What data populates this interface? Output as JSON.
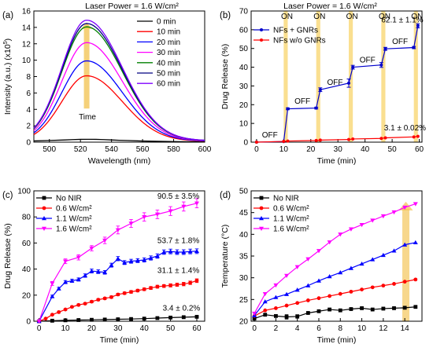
{
  "chart_data": [
    {
      "panel": "(a)",
      "type": "line",
      "title": "Laser Power = 1.6 W/cm²",
      "xlabel": "Wavelength (nm)",
      "ylabel_main": "Intensity (a.u.) (x10",
      "ylabel_sup": "5",
      "ylabel_end": ")",
      "xlim": [
        490,
        600
      ],
      "ylim": [
        0,
        16
      ],
      "xticks": [
        500,
        520,
        540,
        560,
        580,
        600
      ],
      "yticks": [
        0,
        2,
        4,
        6,
        8,
        10,
        12,
        14,
        16
      ],
      "legend_position": "top-right",
      "annotation": "Time",
      "arrow": {
        "x": 524,
        "y_from": 4.1,
        "y_to": 14.6,
        "color": "#f2c24e"
      },
      "series": [
        {
          "name": "0 min",
          "color": "#000000",
          "peak": 0.35,
          "x": [
            490,
            500,
            510,
            515,
            520,
            525,
            530,
            535,
            540,
            545,
            550,
            560,
            570,
            580,
            590,
            600
          ],
          "y": [
            0.15,
            0.2,
            0.27,
            0.31,
            0.34,
            0.35,
            0.34,
            0.31,
            0.27,
            0.23,
            0.2,
            0.14,
            0.1,
            0.07,
            0.05,
            0.04
          ]
        },
        {
          "name": "10 min",
          "color": "#ff0000",
          "peak": 8.0
        },
        {
          "name": "20 min",
          "color": "#0000ff",
          "peak": 9.8
        },
        {
          "name": "30 min",
          "color": "#ff00ff",
          "peak": 12.0
        },
        {
          "name": "40 min",
          "color": "#008000",
          "peak": 13.9
        },
        {
          "name": "50 min",
          "color": "#000080",
          "peak": 14.3
        },
        {
          "name": "60 min",
          "color": "#7f00ff",
          "peak": 14.7
        }
      ]
    },
    {
      "panel": "(b)",
      "type": "line",
      "title": "Laser Power = 1.6 W/cm²",
      "xlabel": "Time (min)",
      "ylabel": "Drug Release (%)",
      "xlim": [
        -2,
        61
      ],
      "ylim": [
        0,
        70
      ],
      "xticks": [
        0,
        10,
        20,
        30,
        40,
        50,
        60
      ],
      "yticks": [
        0,
        10,
        20,
        30,
        40,
        50,
        60,
        70
      ],
      "legend_position": "top-left",
      "on_bands": [
        [
          10,
          11.5
        ],
        [
          22,
          23.5
        ],
        [
          34,
          35.5
        ],
        [
          46,
          47.5
        ],
        [
          58,
          59.5
        ]
      ],
      "on_labels": [
        {
          "text": "ON",
          "x": 11.2
        },
        {
          "text": "ON",
          "x": 23.2
        },
        {
          "text": "ON",
          "x": 35.2
        },
        {
          "text": "ON",
          "x": 47.2
        },
        {
          "text": "ON",
          "x": 59.2
        }
      ],
      "off_labels": [
        {
          "text": "OFF",
          "x": 2,
          "y": 2.5
        },
        {
          "text": "OFF",
          "x": 14,
          "y": 20.5
        },
        {
          "text": "OFF",
          "x": 26,
          "y": 30.5
        },
        {
          "text": "OFF",
          "x": 38,
          "y": 42.5
        },
        {
          "text": "OFF",
          "x": 50,
          "y": 52.5
        }
      ],
      "annotations": [
        {
          "text": "62.1 ± 1.1%",
          "x": 46,
          "y": 64
        },
        {
          "text": "3.1 ± 0.02%",
          "x": 47,
          "y": 6.2
        }
      ],
      "series": [
        {
          "name": "NFs + GNRs",
          "color": "#0000cc",
          "x": [
            0,
            10,
            11.5,
            22,
            23.5,
            34,
            35.5,
            46,
            47.5,
            58,
            59.5
          ],
          "y": [
            0,
            0.3,
            17.8,
            18.2,
            28,
            31.5,
            40,
            41.2,
            49.8,
            50.5,
            62.1
          ],
          "err": [
            0,
            0.1,
            0.5,
            0.5,
            1.0,
            2.2,
            1.0,
            1.3,
            0.8,
            0.6,
            1.1
          ]
        },
        {
          "name": "NFs w/o GNRs",
          "color": "#ff0000",
          "x": [
            0,
            10,
            11.5,
            22,
            23.5,
            34,
            35.5,
            46,
            47.5,
            58,
            59.5
          ],
          "y": [
            0,
            0.4,
            0.6,
            0.9,
            1.1,
            1.4,
            1.7,
            2.0,
            2.3,
            2.8,
            3.1
          ]
        }
      ]
    },
    {
      "panel": "(c)",
      "type": "line",
      "xlabel": "Time (min)",
      "ylabel": "Drug Release (%)",
      "xlim": [
        -2,
        63
      ],
      "ylim": [
        0,
        100
      ],
      "xticks": [
        0,
        10,
        20,
        30,
        40,
        50,
        60
      ],
      "yticks": [
        0,
        20,
        40,
        60,
        80,
        100
      ],
      "legend_position": "top-left",
      "annotations": [
        {
          "text": "90.5 ± 3.5%",
          "x": 45,
          "y": 94
        },
        {
          "text": "53.7 ± 1.8%",
          "x": 45,
          "y": 60
        },
        {
          "text": "31.1 ± 1.4%",
          "x": 45,
          "y": 37
        },
        {
          "text": "3.4 ± 0.2%",
          "x": 47,
          "y": 8
        }
      ],
      "series": [
        {
          "name": "No NIR",
          "color": "#000000",
          "marker": "square",
          "x": [
            0,
            5,
            10,
            15,
            20,
            25,
            30,
            35,
            40,
            45,
            50,
            55,
            60
          ],
          "y": [
            0,
            0.4,
            0.7,
            0.9,
            1.1,
            1.3,
            1.5,
            1.7,
            2.0,
            2.4,
            2.8,
            3.1,
            3.4
          ],
          "err": [
            0,
            0.1,
            0.1,
            0.1,
            0.1,
            0.1,
            0.1,
            0.1,
            0.1,
            0.1,
            0.2,
            0.2,
            0.2
          ]
        },
        {
          "name": "0.6 W/cm²",
          "color": "#ff0000",
          "marker": "circle",
          "x": [
            0,
            2.5,
            5,
            7.5,
            10,
            12.5,
            15,
            17.5,
            20,
            22.5,
            25,
            27.5,
            30,
            32.5,
            35,
            37.5,
            40,
            42.5,
            45,
            47.5,
            50,
            52.5,
            55,
            57.5,
            60
          ],
          "y": [
            0,
            2,
            5,
            7,
            9,
            11,
            12.5,
            13.5,
            15,
            16.5,
            17.5,
            18.5,
            20.5,
            21.5,
            22.5,
            23.5,
            24.5,
            25.5,
            26.5,
            27,
            27.5,
            28,
            28.5,
            29.5,
            31.1
          ],
          "err": [
            0,
            0.3,
            0.5,
            0.5,
            0.6,
            0.6,
            0.7,
            0.7,
            0.8,
            0.8,
            0.8,
            0.9,
            0.9,
            0.9,
            1.0,
            1.0,
            1.0,
            1.1,
            1.1,
            1.1,
            1.2,
            1.2,
            1.3,
            1.3,
            1.4
          ]
        },
        {
          "name": "1.1 W/cm²",
          "color": "#0000ff",
          "marker": "triangle",
          "x": [
            0,
            5,
            7.5,
            10,
            12.5,
            15,
            17.5,
            20,
            22.5,
            25,
            27.5,
            30,
            32.5,
            35,
            37.5,
            40,
            42.5,
            45,
            47.5,
            50,
            52.5,
            55,
            57.5,
            60
          ],
          "y": [
            0,
            19,
            25,
            30,
            31,
            32,
            35,
            38.5,
            38,
            37.5,
            43,
            48,
            45,
            46,
            46.5,
            47,
            48.5,
            50,
            53,
            53.5,
            53,
            53,
            53.5,
            53.7
          ],
          "err": [
            0,
            1.0,
            1.0,
            1.2,
            1.2,
            1.2,
            1.3,
            1.5,
            1.4,
            1.4,
            1.5,
            1.6,
            1.5,
            1.5,
            1.5,
            1.6,
            1.6,
            1.7,
            1.7,
            1.8,
            1.8,
            1.8,
            1.8,
            1.8
          ]
        },
        {
          "name": "1.6 W/cm²",
          "color": "#ff00ff",
          "marker": "triangle-down",
          "x": [
            0,
            5,
            10,
            15,
            20,
            25,
            30,
            35,
            40,
            45,
            50,
            55,
            60
          ],
          "y": [
            0,
            29,
            46,
            49,
            56,
            62,
            70,
            75,
            80,
            82,
            84.5,
            88,
            90.5
          ],
          "err": [
            0,
            1.5,
            1.8,
            2.0,
            2.0,
            2.5,
            3.0,
            3.0,
            3.2,
            3.3,
            3.4,
            3.5,
            3.5
          ]
        }
      ]
    },
    {
      "panel": "(d)",
      "type": "line",
      "xlabel": "Time (min)",
      "ylabel": "Temperature (°C)",
      "xlim": [
        -0.3,
        15.6
      ],
      "ylim": [
        20,
        50
      ],
      "xticks": [
        0,
        2,
        4,
        6,
        8,
        10,
        12,
        14,
        16
      ],
      "yticks": [
        20,
        25,
        30,
        35,
        40,
        45,
        50
      ],
      "legend_position": "top-left",
      "arrow": {
        "x": 14.1,
        "y_from": 20,
        "y_to": 47.5,
        "color": "#f2c24e"
      },
      "series": [
        {
          "name": "No NIR",
          "color": "#000000",
          "marker": "square",
          "x": [
            0,
            1,
            2,
            3,
            4,
            5,
            6,
            7,
            8,
            9,
            10,
            11,
            12,
            13,
            14,
            15
          ],
          "y": [
            20.6,
            21.5,
            21.2,
            21.0,
            21.1,
            21.9,
            22.3,
            22.7,
            22.5,
            22.8,
            23.0,
            22.7,
            22.9,
            23.0,
            23.1,
            23.3
          ],
          "err": [
            0.2,
            0.2,
            0.3,
            0.5,
            0.4,
            0.2,
            0.2,
            0.2,
            0.2,
            0.2,
            0.2,
            0.2,
            0.2,
            0.2,
            0.2,
            0.2
          ]
        },
        {
          "name": "0.6 W/cm²",
          "color": "#ff0000",
          "marker": "circle",
          "x": [
            0,
            1,
            2,
            3,
            4,
            5,
            6,
            7,
            8,
            9,
            10,
            11,
            12,
            13,
            14,
            15
          ],
          "y": [
            21.2,
            22.5,
            23.0,
            23.6,
            24.2,
            24.8,
            25.3,
            25.8,
            26.3,
            26.8,
            27.3,
            27.8,
            28.2,
            28.6,
            29.1,
            29.6
          ]
        },
        {
          "name": "1.1 W/cm²",
          "color": "#0000ff",
          "marker": "triangle",
          "x": [
            0,
            1,
            2,
            3,
            4,
            5,
            6,
            7,
            8,
            9,
            10,
            11,
            12,
            13,
            14,
            15
          ],
          "y": [
            21.3,
            24.5,
            25.5,
            26.2,
            27.2,
            28.2,
            29.3,
            30.3,
            31.2,
            32.2,
            33.2,
            34.2,
            35.2,
            36.2,
            37.6,
            38.1
          ]
        },
        {
          "name": "1.6 W/cm²",
          "color": "#ff00ff",
          "marker": "triangle-down",
          "x": [
            0,
            1,
            2,
            3,
            4,
            5,
            6,
            7,
            8,
            9,
            10,
            11,
            12,
            13,
            14,
            15
          ],
          "y": [
            21.8,
            26.3,
            28.3,
            30.5,
            32.5,
            34.3,
            36.2,
            38.2,
            40.0,
            41.2,
            42.2,
            43.2,
            44.2,
            45.1,
            46.2,
            47.0
          ]
        }
      ]
    }
  ]
}
